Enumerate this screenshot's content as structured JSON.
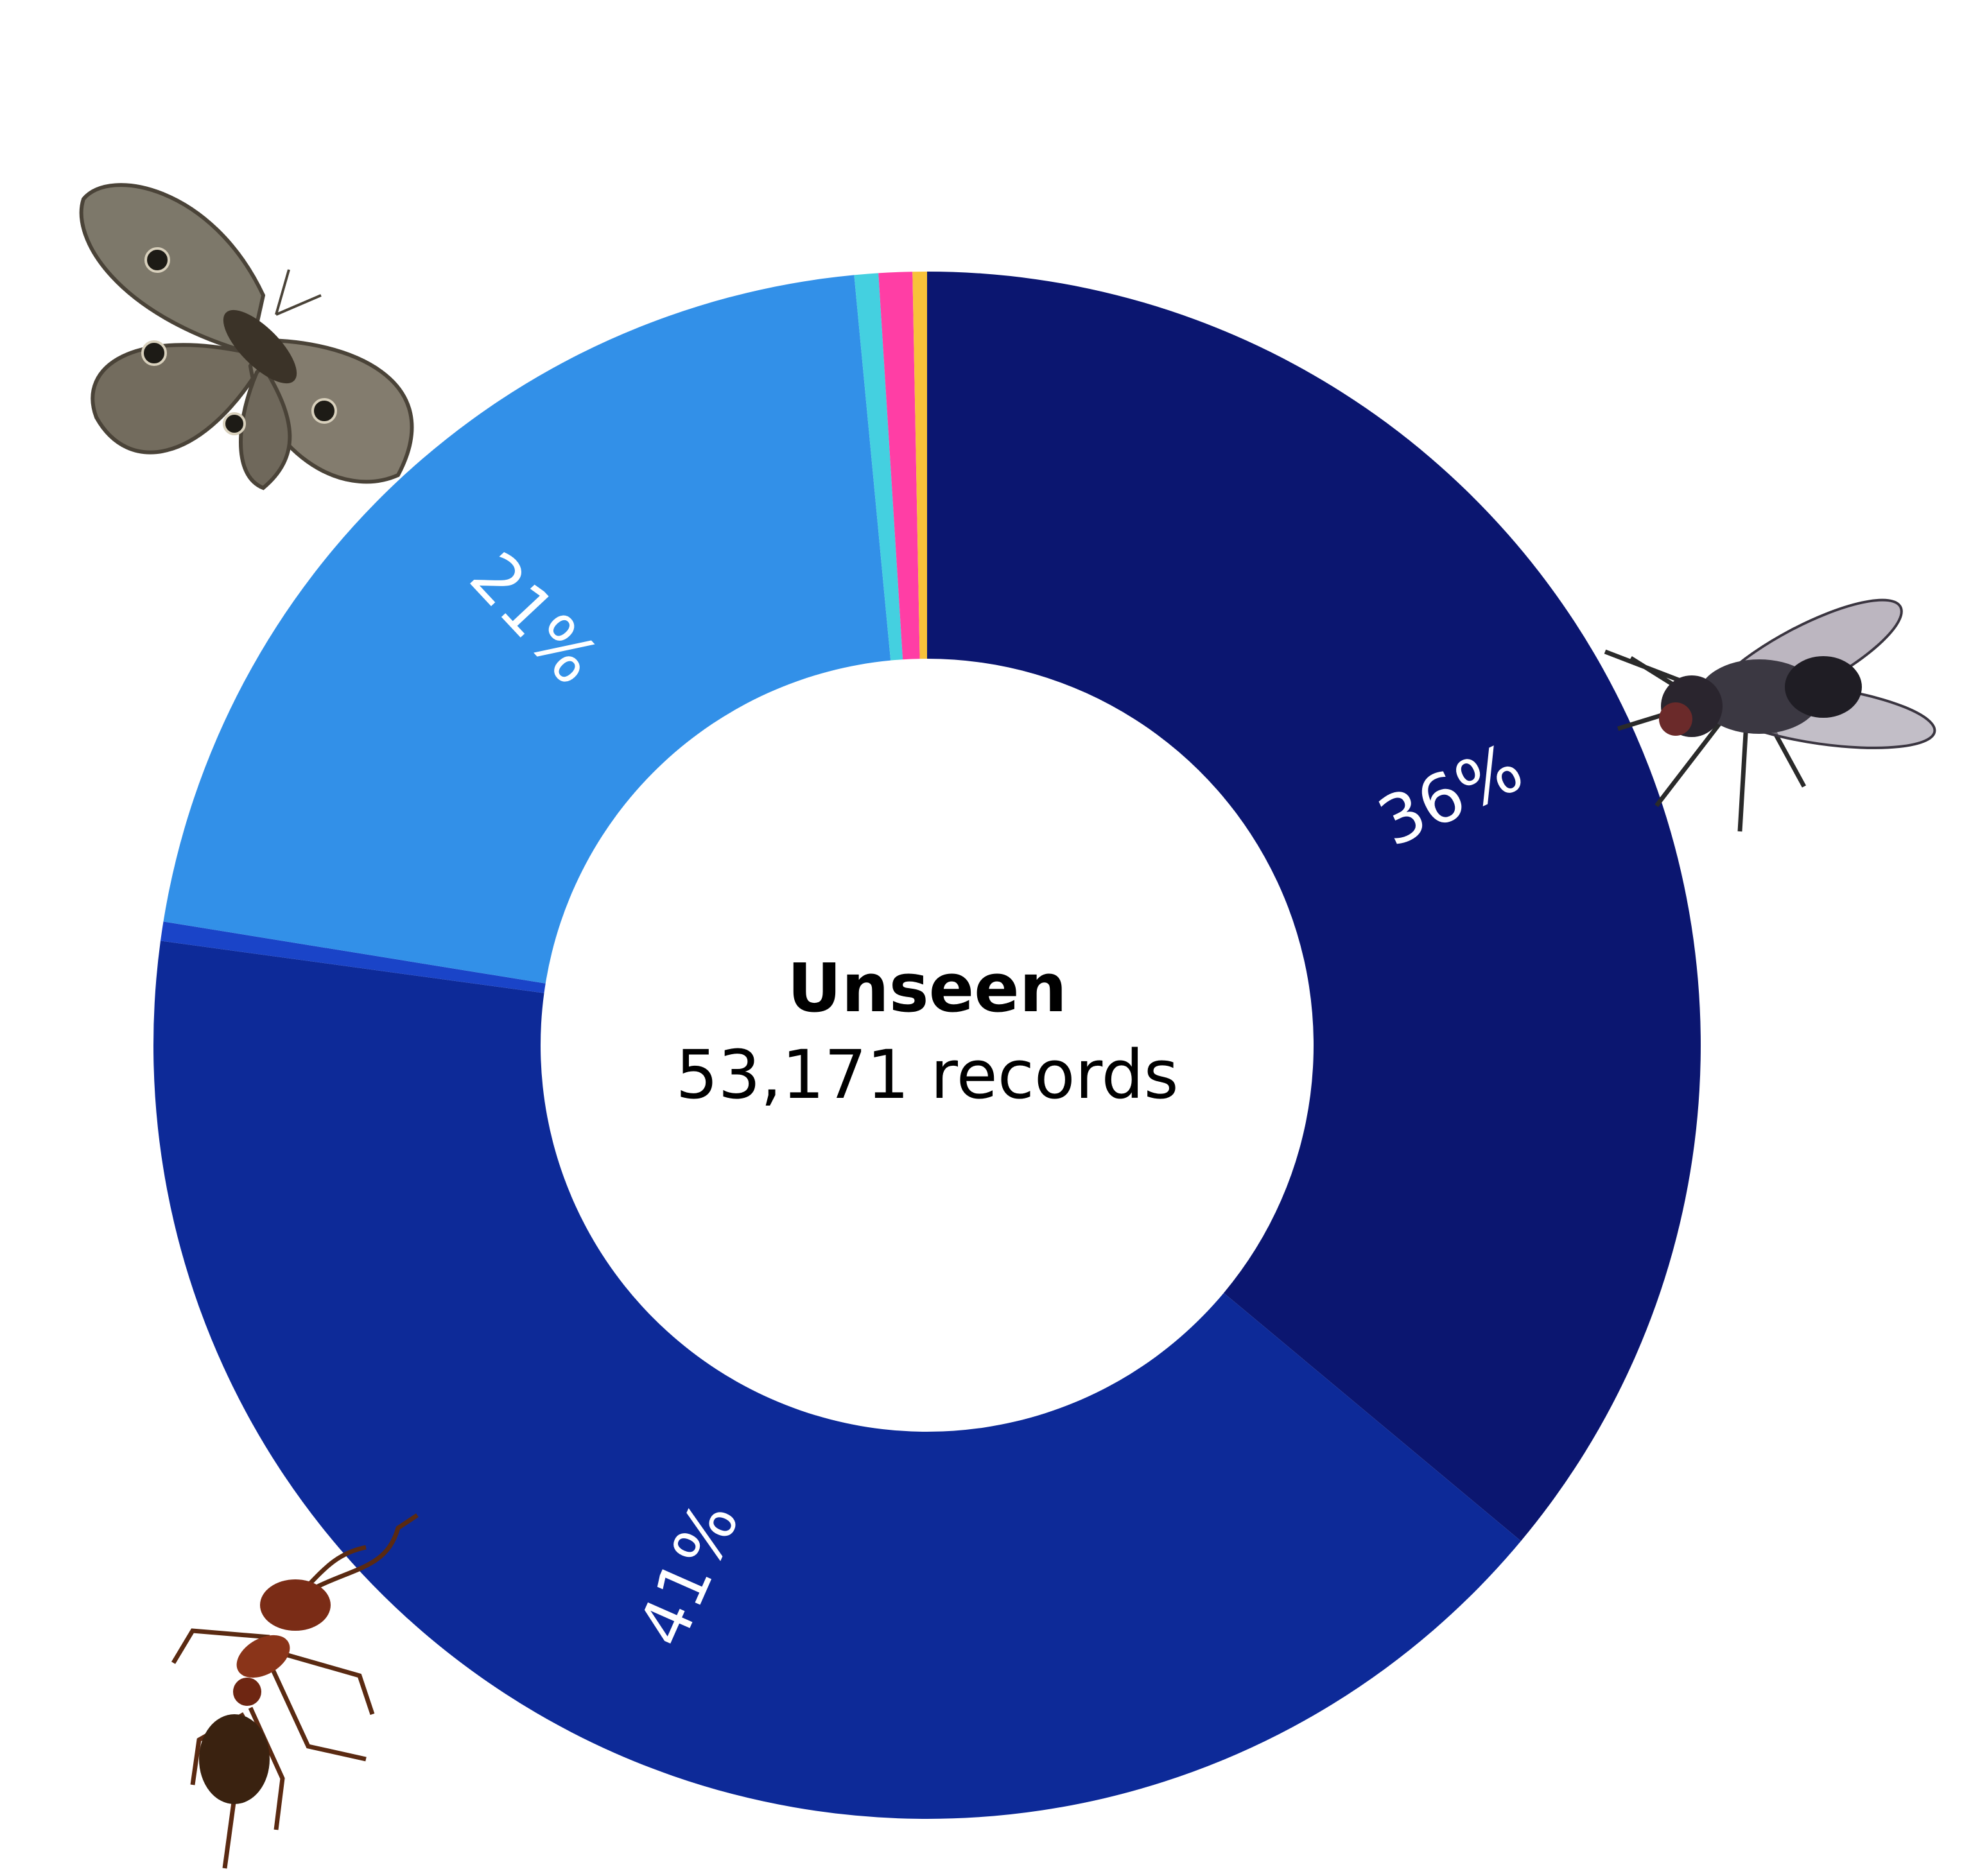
{
  "chart_data": {
    "type": "pie",
    "donut": true,
    "center_title": "Unseen",
    "center_subtitle": "53,171 records",
    "start_angle_deg": 0,
    "direction": "clockwise",
    "slices": [
      {
        "value": 36.0,
        "color": "#0b1670",
        "label": "36%"
      },
      {
        "value": 41.0,
        "color": "#0d2a98",
        "label": "41%"
      },
      {
        "value": 0.4,
        "color": "#1a44c8",
        "label": ""
      },
      {
        "value": 20.9,
        "color": "#3290e8",
        "label": "21%"
      },
      {
        "value": 0.5,
        "color": "#44d0e0",
        "label": ""
      },
      {
        "value": 0.7,
        "color": "#ff3ea5",
        "label": ""
      },
      {
        "value": 0.3,
        "color": "#f8c23a",
        "label": ""
      }
    ],
    "icons": [
      "fly-icon",
      "ant-icon",
      "moth-icon"
    ]
  }
}
